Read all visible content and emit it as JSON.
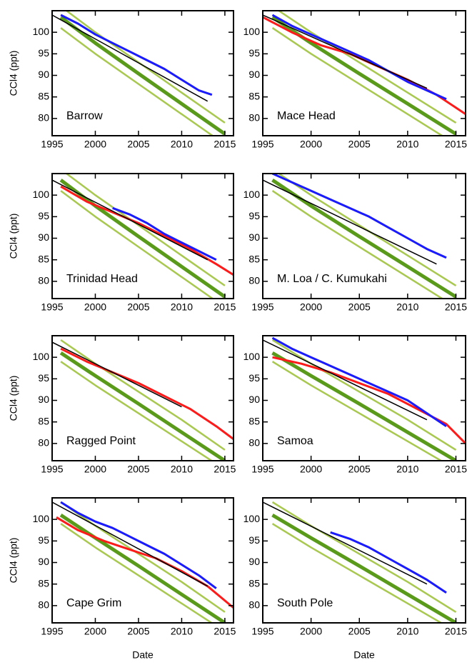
{
  "chart_data": [
    {
      "type": "line",
      "title": "Barrow",
      "ylabel": "CCl4 (ppt)",
      "xlim": [
        1995,
        2016
      ],
      "ylim": [
        76,
        105
      ],
      "xticks": [
        1995,
        2000,
        2005,
        2010,
        2015
      ],
      "yticks": [
        80,
        85,
        90,
        95,
        100
      ],
      "x": [
        1996,
        2000,
        2005,
        2010,
        2015
      ],
      "series": [
        {
          "color": "#a8c850",
          "values": [
            101,
            95,
            88,
            81,
            74
          ]
        },
        {
          "color": "#a8c850",
          "values": [
            106,
            100,
            93,
            86,
            79
          ]
        },
        {
          "color": "#5a9a1a",
          "values": [
            103.5,
            97.5,
            90.4,
            83.4,
            76.4
          ]
        },
        {
          "color": "#1a1aff",
          "x": [
            1996,
            1998,
            2000,
            2002,
            2004,
            2006,
            2008,
            2010,
            2012,
            2013.5
          ],
          "values": [
            104,
            102,
            99.5,
            97.5,
            95.5,
            93.5,
            91.5,
            89,
            86.5,
            85.5
          ]
        },
        {
          "color": "#000000",
          "x": [
            1995,
            2013
          ],
          "values": [
            104,
            84
          ]
        }
      ]
    },
    {
      "type": "line",
      "title": "Mace Head",
      "xlim": [
        1995,
        2016
      ],
      "ylim": [
        76,
        105
      ],
      "xticks": [
        1995,
        2000,
        2005,
        2010,
        2015
      ],
      "yticks": [
        80,
        85,
        90,
        95,
        100
      ],
      "x": [
        1996,
        2000,
        2005,
        2010,
        2015
      ],
      "series": [
        {
          "color": "#a8c850",
          "values": [
            101,
            95,
            88,
            81,
            74
          ]
        },
        {
          "color": "#a8c850",
          "values": [
            106,
            100,
            93,
            86,
            79
          ]
        },
        {
          "color": "#5a9a1a",
          "values": [
            103.5,
            97.5,
            90.4,
            83.4,
            76.4
          ]
        },
        {
          "color": "#ff1a1a",
          "x": [
            1995,
            1998,
            2001,
            2004,
            2007,
            2010,
            2013,
            2016
          ],
          "values": [
            103.5,
            100,
            97,
            95,
            92,
            89,
            85.5,
            81
          ]
        },
        {
          "color": "#1a1aff",
          "x": [
            1996,
            1998,
            2000,
            2002,
            2004,
            2006,
            2008,
            2010,
            2012,
            2014
          ],
          "values": [
            104,
            101.5,
            99.5,
            97.5,
            95.5,
            93.5,
            91,
            88.5,
            86.5,
            84.5
          ]
        },
        {
          "color": "#000000",
          "x": [
            1995,
            2012
          ],
          "values": [
            104,
            87
          ]
        }
      ]
    },
    {
      "type": "line",
      "title": "Trinidad Head",
      "ylabel": "CCl4 (ppt)",
      "xlim": [
        1995,
        2016
      ],
      "ylim": [
        76,
        105
      ],
      "xticks": [
        1995,
        2000,
        2005,
        2010,
        2015
      ],
      "yticks": [
        80,
        85,
        90,
        95,
        100
      ],
      "x": [
        1996,
        2000,
        2005,
        2010,
        2015
      ],
      "series": [
        {
          "color": "#a8c850",
          "values": [
            101,
            95,
            88,
            81,
            74
          ]
        },
        {
          "color": "#a8c850",
          "values": [
            106,
            100,
            93,
            86,
            79
          ]
        },
        {
          "color": "#5a9a1a",
          "values": [
            103.5,
            97.5,
            90.4,
            83.4,
            76.4
          ]
        },
        {
          "color": "#ff1a1a",
          "x": [
            1996,
            1999,
            2002,
            2005,
            2008,
            2011,
            2014,
            2016
          ],
          "values": [
            102,
            98.5,
            96,
            93.5,
            90.5,
            87.5,
            84,
            81.5
          ]
        },
        {
          "color": "#1a1aff",
          "x": [
            2002,
            2004,
            2006,
            2008,
            2010,
            2012,
            2014
          ],
          "values": [
            97,
            95.5,
            93.5,
            91,
            89,
            87,
            85
          ]
        },
        {
          "color": "#000000",
          "x": [
            1995,
            2013
          ],
          "values": [
            103.5,
            85
          ]
        }
      ]
    },
    {
      "type": "line",
      "title": "M. Loa / C. Kumukahi",
      "xlim": [
        1995,
        2016
      ],
      "ylim": [
        76,
        105
      ],
      "xticks": [
        1995,
        2000,
        2005,
        2010,
        2015
      ],
      "yticks": [
        80,
        85,
        90,
        95,
        100
      ],
      "x": [
        1996,
        2000,
        2005,
        2010,
        2015
      ],
      "series": [
        {
          "color": "#a8c850",
          "values": [
            101,
            95,
            88,
            81,
            74
          ]
        },
        {
          "color": "#a8c850",
          "values": [
            106,
            100,
            93,
            86,
            79
          ]
        },
        {
          "color": "#5a9a1a",
          "values": [
            103.5,
            97.5,
            90.4,
            83.4,
            76.4
          ]
        },
        {
          "color": "#1a1aff",
          "x": [
            1996,
            1998,
            2000,
            2002,
            2004,
            2006,
            2008,
            2010,
            2012,
            2014
          ],
          "values": [
            105,
            103,
            101,
            99,
            97,
            95,
            92.5,
            90,
            87.5,
            85.5
          ]
        },
        {
          "color": "#000000",
          "x": [
            1995,
            2013
          ],
          "values": [
            103.5,
            84
          ]
        }
      ]
    },
    {
      "type": "line",
      "title": "Ragged Point",
      "ylabel": "CCl4 (ppt)",
      "xlim": [
        1995,
        2016
      ],
      "ylim": [
        76,
        105
      ],
      "xticks": [
        1995,
        2000,
        2005,
        2010,
        2015
      ],
      "yticks": [
        80,
        85,
        90,
        95,
        100
      ],
      "x": [
        1996,
        2000,
        2005,
        2010,
        2015
      ],
      "series": [
        {
          "color": "#a8c850",
          "values": [
            99,
            93.5,
            87,
            80.5,
            74
          ]
        },
        {
          "color": "#a8c850",
          "values": [
            104,
            98.5,
            92,
            85.5,
            78.5
          ]
        },
        {
          "color": "#5a9a1a",
          "values": [
            101,
            95.7,
            89.2,
            82.6,
            76
          ]
        },
        {
          "color": "#ff1a1a",
          "x": [
            1996,
            1999,
            2002,
            2005,
            2008,
            2011,
            2014,
            2016
          ],
          "values": [
            102,
            99,
            96.5,
            94,
            91,
            88,
            84,
            81
          ]
        },
        {
          "color": "#000000",
          "x": [
            1995,
            2010
          ],
          "values": [
            103.5,
            88.5
          ]
        }
      ]
    },
    {
      "type": "line",
      "title": "Samoa",
      "xlim": [
        1995,
        2016
      ],
      "ylim": [
        76,
        105
      ],
      "xticks": [
        1995,
        2000,
        2005,
        2010,
        2015
      ],
      "yticks": [
        80,
        85,
        90,
        95,
        100
      ],
      "x": [
        1996,
        2000,
        2005,
        2010,
        2015
      ],
      "series": [
        {
          "color": "#a8c850",
          "values": [
            99,
            93.5,
            87,
            80.5,
            74
          ]
        },
        {
          "color": "#a8c850",
          "values": [
            104,
            98.5,
            92,
            85.5,
            78.5
          ]
        },
        {
          "color": "#5a9a1a",
          "values": [
            101,
            95.7,
            89.2,
            82.6,
            76
          ]
        },
        {
          "color": "#ff1a1a",
          "x": [
            1996,
            1999,
            2002,
            2005,
            2008,
            2011,
            2014,
            2016
          ],
          "values": [
            100,
            98.5,
            96.5,
            94,
            91.5,
            88,
            84.5,
            80
          ]
        },
        {
          "color": "#1a1aff",
          "x": [
            1996,
            1998,
            2000,
            2002,
            2004,
            2006,
            2008,
            2010,
            2012,
            2014
          ],
          "values": [
            104.5,
            102,
            100,
            98,
            96,
            94,
            92,
            90,
            87,
            84
          ]
        },
        {
          "color": "#000000",
          "x": [
            1995,
            2012
          ],
          "values": [
            104,
            85.5
          ]
        }
      ]
    },
    {
      "type": "line",
      "title": "Cape Grim",
      "ylabel": "CCl4 (ppt)",
      "xlabel": "Date",
      "xlim": [
        1995,
        2016
      ],
      "ylim": [
        76,
        105
      ],
      "xticks": [
        1995,
        2000,
        2005,
        2010,
        2015
      ],
      "yticks": [
        80,
        85,
        90,
        95,
        100
      ],
      "x": [
        1996,
        2000,
        2005,
        2010,
        2015
      ],
      "series": [
        {
          "color": "#a8c850",
          "values": [
            99,
            93.5,
            87,
            80.5,
            74
          ]
        },
        {
          "color": "#a8c850",
          "values": [
            104,
            98.5,
            92,
            85.5,
            78.5
          ]
        },
        {
          "color": "#5a9a1a",
          "values": [
            101,
            95.7,
            89.2,
            82.6,
            76
          ]
        },
        {
          "color": "#ff1a1a",
          "x": [
            1995.5,
            1998,
            2001,
            2004,
            2007,
            2010,
            2013,
            2016
          ],
          "values": [
            100.5,
            97.5,
            95,
            93,
            91,
            88,
            84.5,
            79.5
          ]
        },
        {
          "color": "#1a1aff",
          "x": [
            1996,
            1998,
            2000,
            2002,
            2004,
            2006,
            2008,
            2010,
            2012,
            2014
          ],
          "values": [
            104,
            101.5,
            99.5,
            98,
            96,
            94,
            92,
            89.5,
            87,
            84
          ]
        },
        {
          "color": "#000000",
          "x": [
            1995,
            2013
          ],
          "values": [
            104,
            84.5
          ]
        }
      ]
    },
    {
      "type": "line",
      "title": "South Pole",
      "xlabel": "Date",
      "xlim": [
        1995,
        2016
      ],
      "ylim": [
        76,
        105
      ],
      "xticks": [
        1995,
        2000,
        2005,
        2010,
        2015
      ],
      "yticks": [
        80,
        85,
        90,
        95,
        100
      ],
      "x": [
        1996,
        2000,
        2005,
        2010,
        2015
      ],
      "series": [
        {
          "color": "#a8c850",
          "values": [
            99,
            93.5,
            87,
            80.5,
            74
          ]
        },
        {
          "color": "#a8c850",
          "values": [
            104,
            98.5,
            92,
            85.5,
            78.5
          ]
        },
        {
          "color": "#5a9a1a",
          "values": [
            101,
            95.7,
            89.2,
            82.6,
            76
          ]
        },
        {
          "color": "#1a1aff",
          "x": [
            2002,
            2004,
            2006,
            2008,
            2010,
            2012,
            2014
          ],
          "values": [
            97,
            95.5,
            93.5,
            91,
            88.5,
            86,
            83
          ]
        },
        {
          "color": "#000000",
          "x": [
            1995,
            2012
          ],
          "values": [
            104,
            85
          ]
        }
      ]
    }
  ]
}
